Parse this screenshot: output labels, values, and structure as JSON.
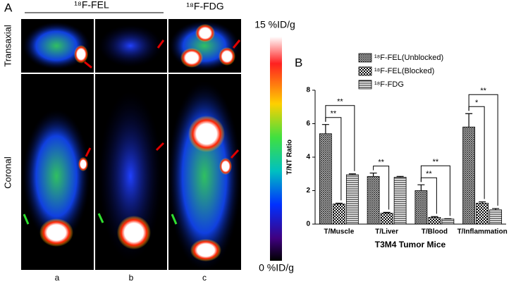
{
  "panel_a": {
    "label": "A",
    "headers": [
      "¹⁸F-FEL",
      "¹⁸F-FDG"
    ],
    "row_labels": [
      "Transaxial",
      "Coronal"
    ],
    "colorbar": {
      "max_label": "15 %ID/g",
      "min_label": "0 %ID/g"
    },
    "column_labels": [
      "a",
      "b",
      "c"
    ]
  },
  "chart_data": {
    "type": "bar",
    "panel_label": "B",
    "ylabel": "T/NT Ratio",
    "xlabel": "T3M4 Tumor Mice",
    "categories": [
      "T/Muscle",
      "T/Liver",
      "T/Blood",
      "T/Inflammation"
    ],
    "series": [
      {
        "name": "¹⁸F-FEL(Unblocked)",
        "pattern": "crosshatch",
        "values": [
          5.4,
          2.85,
          2.0,
          5.8
        ],
        "errors": [
          0.55,
          0.2,
          0.35,
          0.8
        ]
      },
      {
        "name": "¹⁸F-FEL(Blocked)",
        "pattern": "checker",
        "values": [
          1.2,
          0.65,
          0.4,
          1.25
        ],
        "errors": [
          0.05,
          0.05,
          0.05,
          0.08
        ]
      },
      {
        "name": "¹⁸F-FDG",
        "pattern": "hlines",
        "values": [
          2.95,
          2.8,
          0.3,
          0.85
        ],
        "errors": [
          0.05,
          0.05,
          0.02,
          0.08
        ]
      }
    ],
    "ylim": [
      0,
      8
    ],
    "yticks": [
      0,
      2,
      4,
      6,
      8
    ],
    "annotations": [
      {
        "category": 0,
        "from": 0,
        "to": 1,
        "label": "**"
      },
      {
        "category": 0,
        "from": 0,
        "to": 2,
        "label": "**"
      },
      {
        "category": 1,
        "from": 0,
        "to": 1,
        "label": "**"
      },
      {
        "category": 2,
        "from": 0,
        "to": 1,
        "label": "**"
      },
      {
        "category": 2,
        "from": 0,
        "to": 2,
        "label": "**"
      },
      {
        "category": 3,
        "from": 0,
        "to": 1,
        "label": "*"
      },
      {
        "category": 3,
        "from": 0,
        "to": 2,
        "label": "**"
      }
    ]
  }
}
